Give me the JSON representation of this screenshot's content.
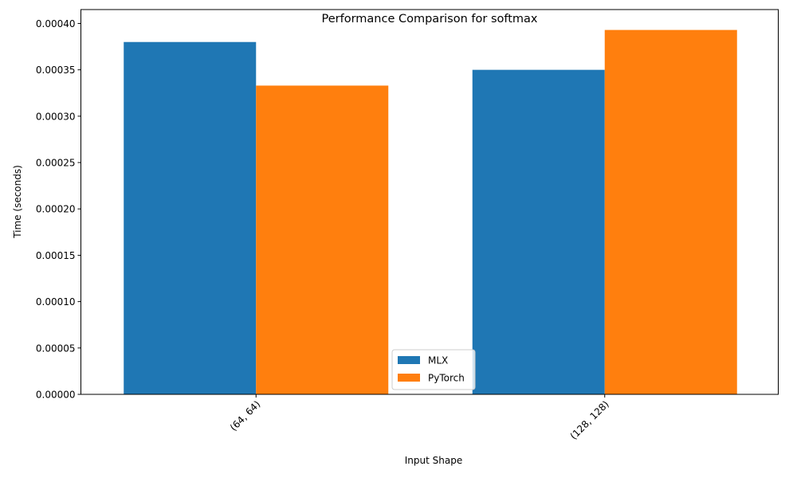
{
  "chart_data": {
    "type": "bar",
    "title": "Performance Comparison for softmax",
    "xlabel": "Input Shape",
    "ylabel": "Time (seconds)",
    "categories": [
      "(64, 64)",
      "(128, 128)"
    ],
    "series": [
      {
        "name": "MLX",
        "color": "#1f77b4",
        "values": [
          0.00038,
          0.00035
        ]
      },
      {
        "name": "PyTorch",
        "color": "#ff7f0e",
        "values": [
          0.000333,
          0.000393
        ]
      }
    ],
    "ylim": [
      0,
      0.000415
    ],
    "yticks": [
      "0.00000",
      "0.00005",
      "0.00010",
      "0.00015",
      "0.00020",
      "0.00025",
      "0.00030",
      "0.00035",
      "0.00040"
    ],
    "ytick_values": [
      0,
      5e-05,
      0.0001,
      0.00015,
      0.0002,
      0.00025,
      0.0003,
      0.00035,
      0.0004
    ],
    "xtick_rotation": 45,
    "grid": false,
    "legend_position": "lower center"
  }
}
